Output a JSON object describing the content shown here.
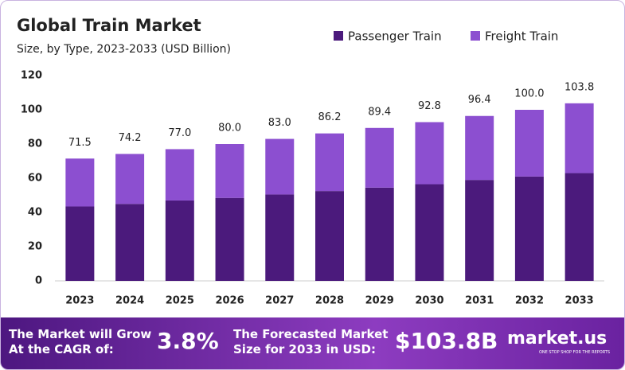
{
  "chart_data": {
    "type": "stacked_bar",
    "title": "Global Train Market",
    "subtitle": "Size, by Type, 2023-2033 (USD Billion)",
    "categories": [
      "2023",
      "2024",
      "2025",
      "2026",
      "2027",
      "2028",
      "2029",
      "2030",
      "2031",
      "2032",
      "2033"
    ],
    "series": [
      {
        "name": "Passenger Train",
        "color": "#4b1a7c",
        "values": [
          43.5,
          45,
          47,
          48.5,
          50.5,
          52.5,
          54.5,
          56.5,
          59,
          61,
          63
        ]
      },
      {
        "name": "Freight Train",
        "color": "#8c4fd0",
        "values": [
          28,
          29.2,
          30,
          31.5,
          32.5,
          33.7,
          34.9,
          36.3,
          37.4,
          39,
          40.8
        ]
      }
    ],
    "totals": [
      71.5,
      74.2,
      77,
      80,
      83,
      86.2,
      89.4,
      92.8,
      96.4,
      100,
      103.8
    ],
    "total_labels": [
      "71.5",
      "74.2",
      "77.0",
      "80.0",
      "83.0",
      "86.2",
      "89.4",
      "92.8",
      "96.4",
      "100.0",
      "103.8"
    ],
    "ylim": [
      0,
      120
    ],
    "yticks": [
      0,
      20,
      40,
      60,
      80,
      100,
      120
    ],
    "grid": false,
    "legend": "top-right"
  },
  "footer": {
    "cagr_text": [
      "The Market will Grow",
      "At the CAGR of:"
    ],
    "cagr_value": "3.8%",
    "forecast_text": [
      "The Forecasted Market",
      "Size for 2033 in USD:"
    ],
    "forecast_value": "$103.8B",
    "brand": "market.us",
    "tagline": "ONE STOP SHOP FOR THE REPORTS"
  }
}
